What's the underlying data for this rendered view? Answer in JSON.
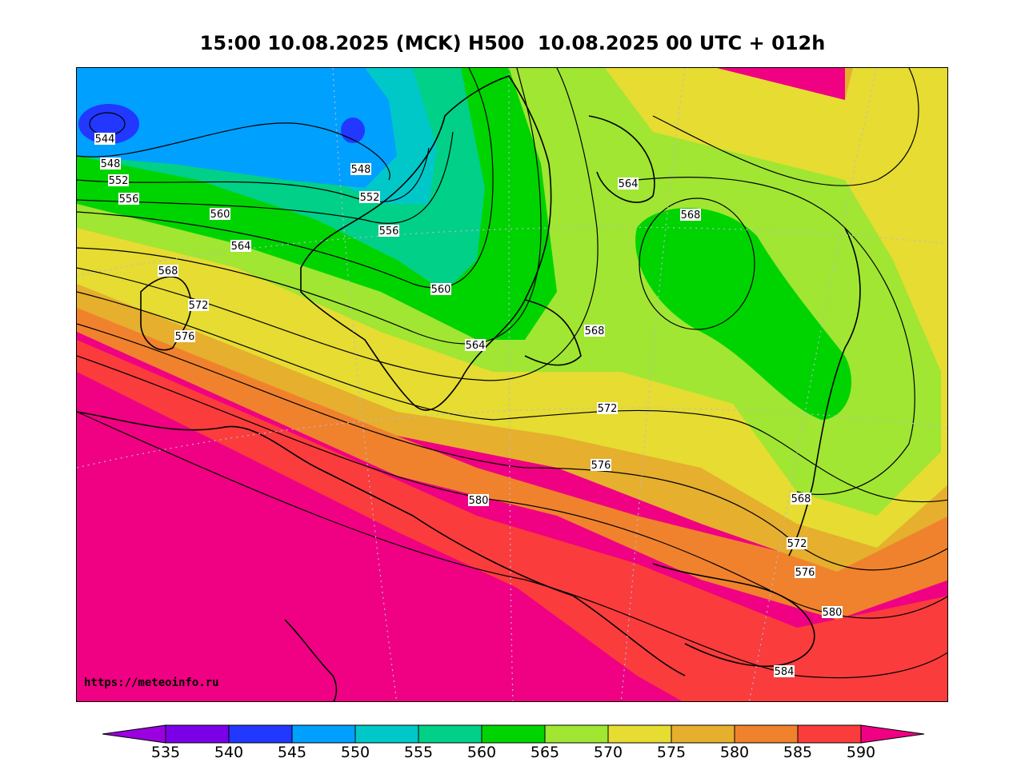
{
  "header": {
    "title": "15:00 10.08.2025 (MCK) H500  10.08.2025 00 UTC + 012h"
  },
  "map": {
    "source_url": "https://meteoinfo.ru",
    "contour_labels": [
      "544",
      "548",
      "552",
      "556",
      "560",
      "564",
      "568",
      "572",
      "576",
      "548",
      "552",
      "556",
      "560",
      "564",
      "568",
      "572",
      "576",
      "580",
      "568",
      "564",
      "568",
      "572",
      "576",
      "580",
      "584"
    ]
  },
  "legend": {
    "ticks": [
      "535",
      "540",
      "545",
      "550",
      "555",
      "560",
      "565",
      "570",
      "575",
      "580",
      "585",
      "590"
    ],
    "colors": [
      "#9a00e0",
      "#7b00e8",
      "#2238ff",
      "#00a0ff",
      "#00c8c8",
      "#00d088",
      "#00d400",
      "#a0e632",
      "#e6dc32",
      "#e6af2d",
      "#f0822d",
      "#fa3c3c",
      "#f00082"
    ]
  }
}
